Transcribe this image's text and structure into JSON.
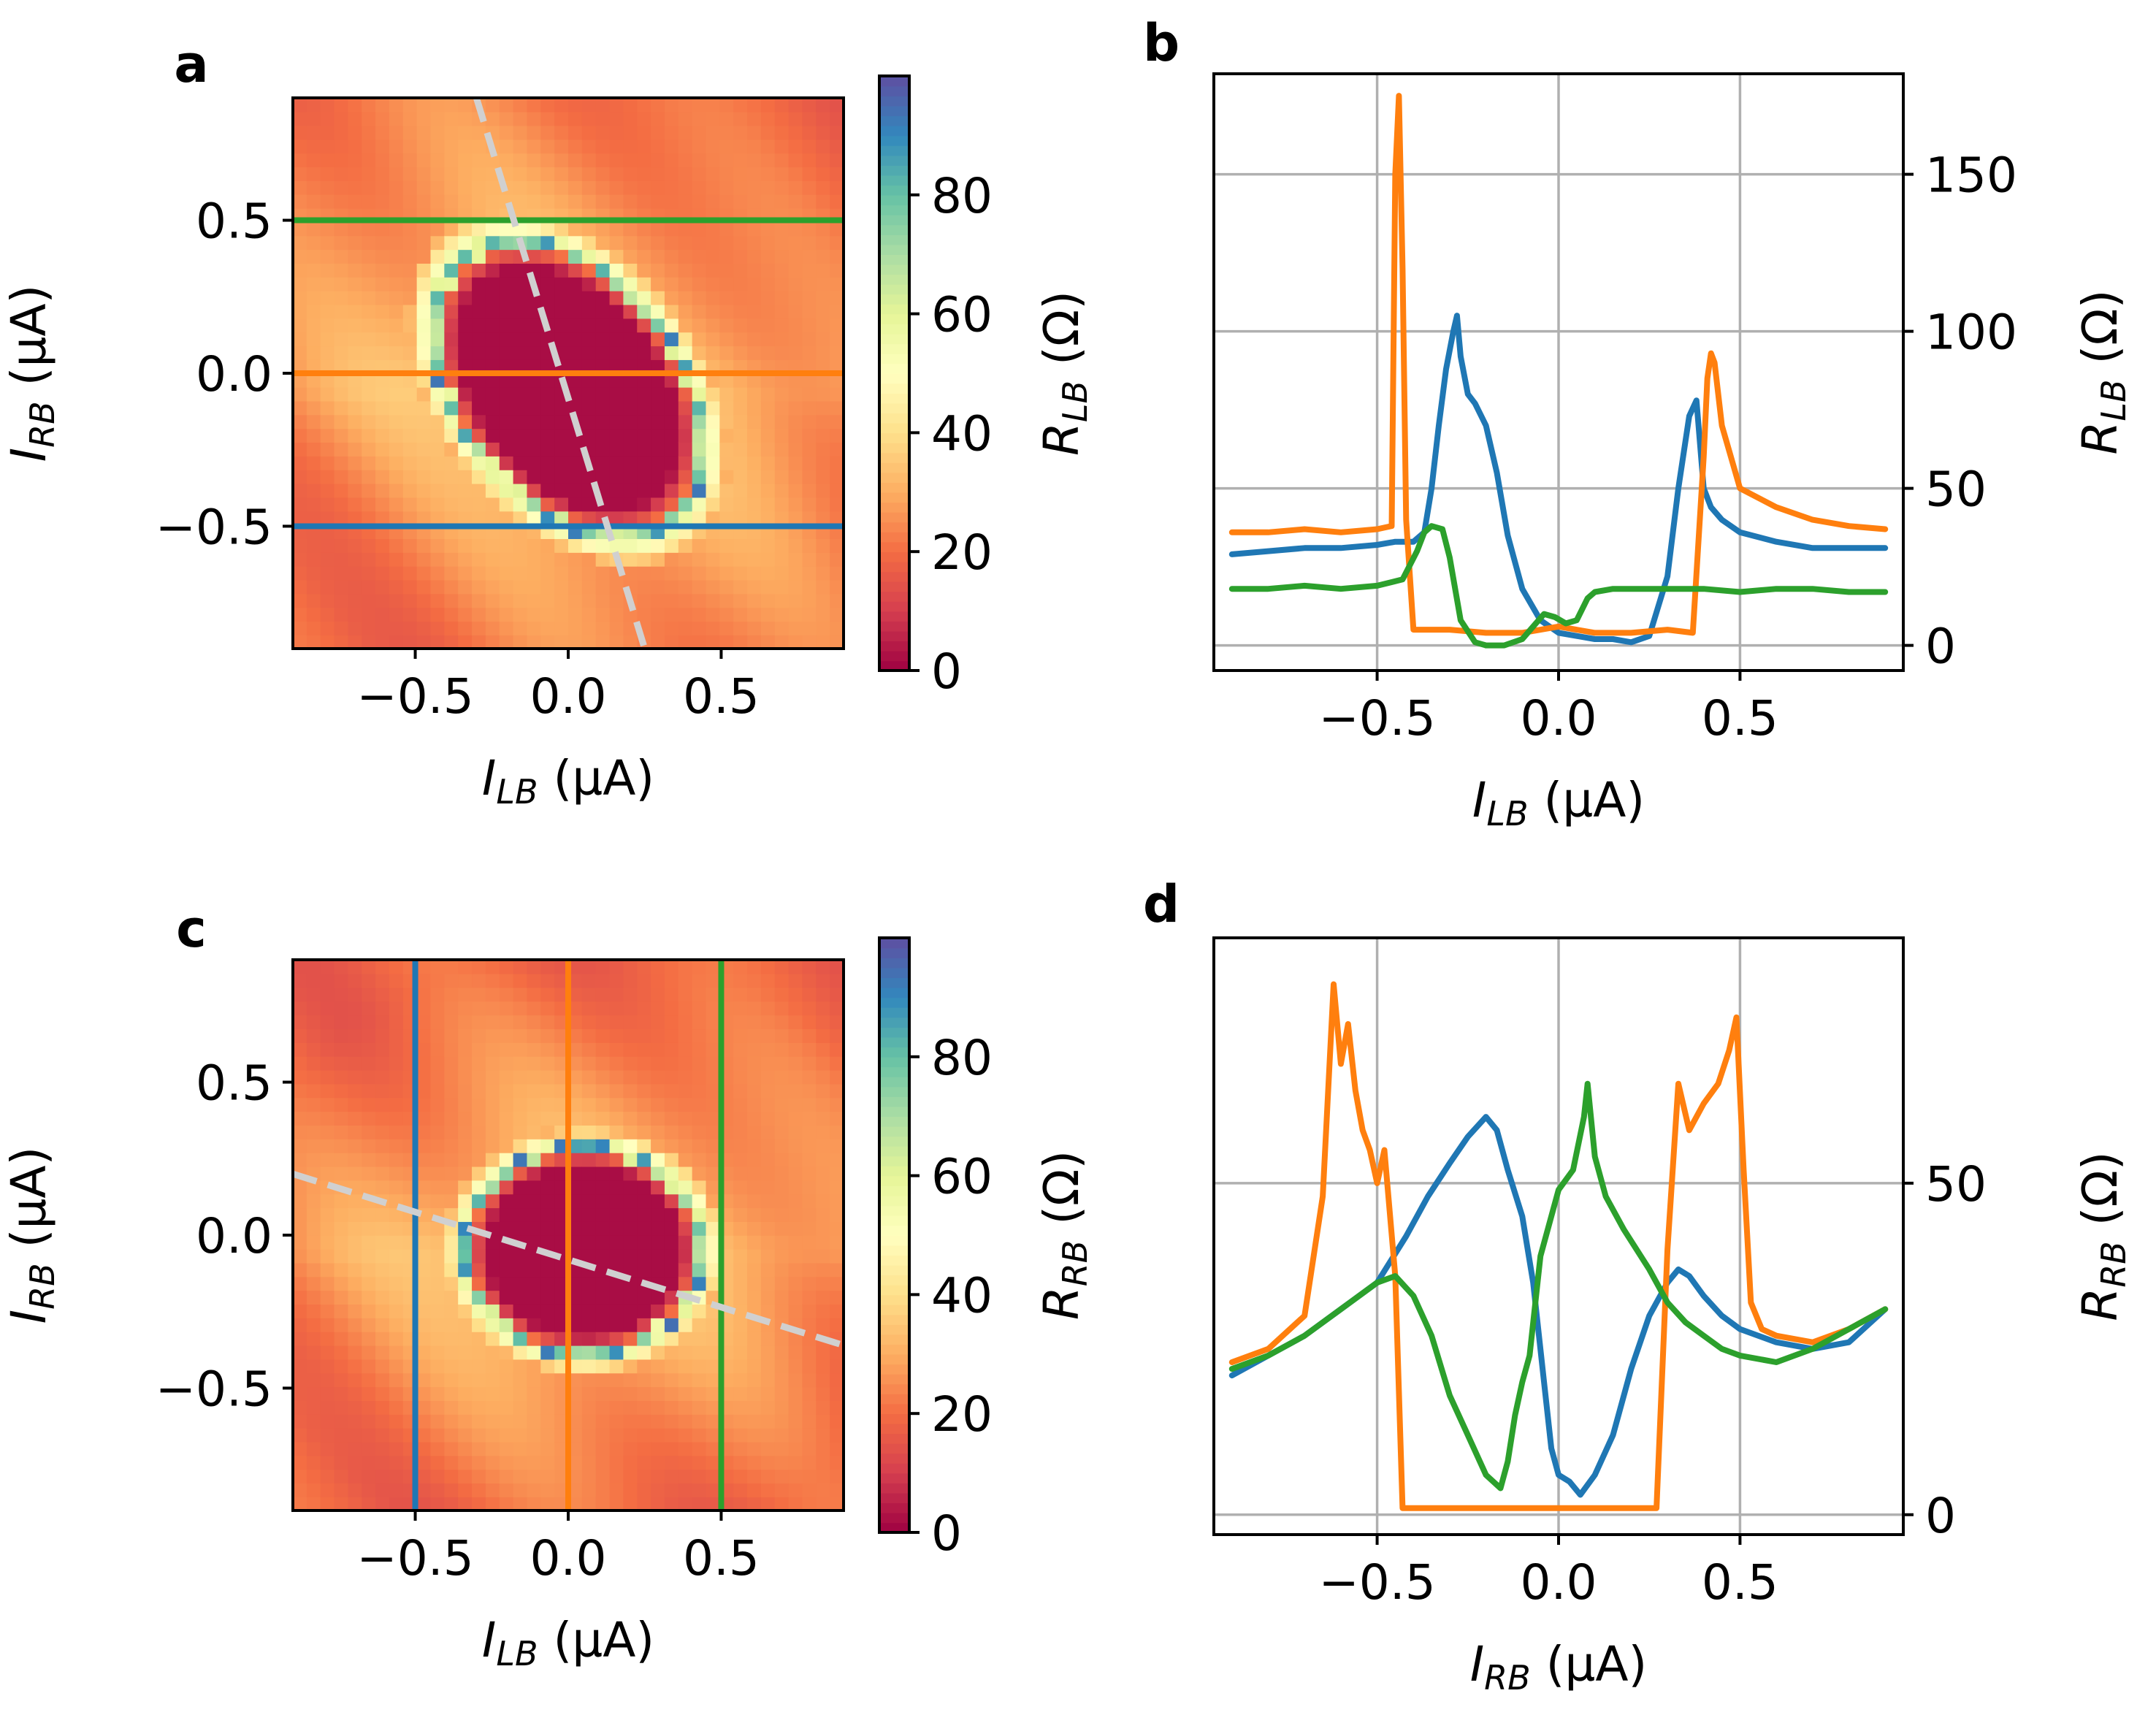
{
  "colors": {
    "blue": "#1f77b4",
    "orange": "#ff7f0e",
    "green": "#2ca02c",
    "dashed": "#d0d0d0",
    "grid": "#b0b0b0",
    "colormap": [
      "#9e0142",
      "#d53e4f",
      "#f46d43",
      "#fdae61",
      "#fee08b",
      "#ffffbf",
      "#e6f598",
      "#abdda4",
      "#66c2a5",
      "#3288bd",
      "#5e4fa2"
    ]
  },
  "chart_data": [
    {
      "id": "a",
      "panel_label": "a",
      "type": "heatmap",
      "x_label": {
        "main": "I",
        "sub": "LB",
        "unit": " (µA)"
      },
      "y_label": {
        "main": "I",
        "sub": "RB",
        "unit": " (µA)"
      },
      "colorbar_label": {
        "main": "R",
        "sub": "LB",
        "unit": " (Ω)"
      },
      "xlim": [
        -0.9,
        0.9
      ],
      "ylim": [
        -0.9,
        0.9
      ],
      "x_ticks": [
        -0.5,
        0.0,
        0.5
      ],
      "x_tick_labels": [
        "−0.5",
        "0.0",
        "0.5"
      ],
      "y_ticks": [
        -0.5,
        0.0,
        0.5
      ],
      "y_tick_labels": [
        "−0.5",
        "0.0",
        "0.5"
      ],
      "colorbar_range": [
        0,
        100
      ],
      "colorbar_ticks": [
        0,
        20,
        40,
        60,
        80
      ],
      "colorbar_tick_labels": [
        "0",
        "20",
        "40",
        "60",
        "80"
      ],
      "superconducting_region": {
        "center": [
          0.0,
          -0.05
        ],
        "half_width_x": 0.42,
        "half_height_y": 0.5,
        "shear": -0.35
      },
      "cut_lines": [
        {
          "orientation": "horizontal",
          "value": 0.5,
          "color": "green"
        },
        {
          "orientation": "horizontal",
          "value": 0.0,
          "color": "orange"
        },
        {
          "orientation": "horizontal",
          "value": -0.5,
          "color": "blue"
        }
      ],
      "dashed_line": {
        "from": [
          -0.3,
          0.9
        ],
        "to": [
          0.25,
          -0.9
        ]
      }
    },
    {
      "id": "b",
      "panel_label": "b",
      "type": "line",
      "x_label": {
        "main": "I",
        "sub": "LB",
        "unit": " (µA)"
      },
      "y_label": {
        "main": "R",
        "sub": "LB",
        "unit": " (Ω)"
      },
      "y_axis_side": "right",
      "grid": true,
      "xlim": [
        -0.95,
        0.95
      ],
      "ylim": [
        -8,
        182
      ],
      "x_ticks": [
        -0.5,
        0.0,
        0.5
      ],
      "x_tick_labels": [
        "−0.5",
        "0.0",
        "0.5"
      ],
      "y_ticks": [
        0,
        50,
        100,
        150
      ],
      "y_tick_labels": [
        "0",
        "50",
        "100",
        "150"
      ],
      "series": [
        {
          "name": "blue",
          "color": "blue",
          "x": [
            -0.9,
            -0.8,
            -0.7,
            -0.6,
            -0.5,
            -0.45,
            -0.4,
            -0.37,
            -0.35,
            -0.33,
            -0.31,
            -0.29,
            -0.28,
            -0.27,
            -0.25,
            -0.23,
            -0.2,
            -0.17,
            -0.14,
            -0.1,
            -0.05,
            0.0,
            0.05,
            0.1,
            0.15,
            0.2,
            0.25,
            0.3,
            0.33,
            0.36,
            0.38,
            0.4,
            0.42,
            0.45,
            0.5,
            0.6,
            0.7,
            0.8,
            0.9
          ],
          "values": [
            29,
            30,
            31,
            31,
            32,
            33,
            33,
            36,
            50,
            70,
            88,
            100,
            105,
            92,
            80,
            77,
            70,
            55,
            35,
            18,
            8,
            4,
            3,
            2,
            2,
            1,
            3,
            22,
            50,
            73,
            78,
            50,
            44,
            40,
            36,
            33,
            31,
            31,
            31
          ]
        },
        {
          "name": "orange",
          "color": "orange",
          "x": [
            -0.9,
            -0.8,
            -0.7,
            -0.6,
            -0.5,
            -0.46,
            -0.45,
            -0.44,
            -0.43,
            -0.42,
            -0.4,
            -0.3,
            -0.2,
            -0.1,
            0.0,
            0.1,
            0.2,
            0.3,
            0.37,
            0.4,
            0.41,
            0.42,
            0.43,
            0.45,
            0.5,
            0.6,
            0.7,
            0.8,
            0.9
          ],
          "values": [
            36,
            36,
            37,
            36,
            37,
            38,
            150,
            175,
            120,
            40,
            5,
            5,
            4,
            4,
            6,
            4,
            4,
            5,
            4,
            60,
            85,
            93,
            90,
            70,
            50,
            44,
            40,
            38,
            37
          ]
        },
        {
          "name": "green",
          "color": "green",
          "x": [
            -0.9,
            -0.8,
            -0.7,
            -0.6,
            -0.5,
            -0.43,
            -0.39,
            -0.37,
            -0.35,
            -0.32,
            -0.3,
            -0.27,
            -0.23,
            -0.2,
            -0.15,
            -0.1,
            -0.07,
            -0.04,
            -0.01,
            0.02,
            0.05,
            0.08,
            0.1,
            0.15,
            0.2,
            0.3,
            0.4,
            0.5,
            0.6,
            0.7,
            0.8,
            0.9
          ],
          "values": [
            18,
            18,
            19,
            18,
            19,
            21,
            30,
            36,
            38,
            37,
            28,
            8,
            1,
            0,
            0,
            2,
            6,
            10,
            9,
            7,
            8,
            15,
            17,
            18,
            18,
            18,
            18,
            17,
            18,
            18,
            17,
            17
          ]
        }
      ]
    },
    {
      "id": "c",
      "panel_label": "c",
      "type": "heatmap",
      "x_label": {
        "main": "I",
        "sub": "LB",
        "unit": " (µA)"
      },
      "y_label": {
        "main": "I",
        "sub": "RB",
        "unit": " (µA)"
      },
      "colorbar_label": {
        "main": "R",
        "sub": "RB",
        "unit": " (Ω)"
      },
      "xlim": [
        -0.9,
        0.9
      ],
      "ylim": [
        -0.9,
        0.9
      ],
      "x_ticks": [
        -0.5,
        0.0,
        0.5
      ],
      "x_tick_labels": [
        "−0.5",
        "0.0",
        "0.5"
      ],
      "y_ticks": [
        -0.5,
        0.0,
        0.5
      ],
      "y_tick_labels": [
        "−0.5",
        "0.0",
        "0.5"
      ],
      "colorbar_range": [
        0,
        100
      ],
      "colorbar_ticks": [
        0,
        20,
        40,
        60,
        80
      ],
      "colorbar_tick_labels": [
        "0",
        "20",
        "40",
        "60",
        "80"
      ],
      "superconducting_region": {
        "center": [
          0.05,
          -0.05
        ],
        "half_width_x": 0.4,
        "half_height_y": 0.35,
        "shear": 0.0
      },
      "cut_lines": [
        {
          "orientation": "vertical",
          "value": -0.5,
          "color": "blue"
        },
        {
          "orientation": "vertical",
          "value": 0.0,
          "color": "orange"
        },
        {
          "orientation": "vertical",
          "value": 0.5,
          "color": "green"
        }
      ],
      "dashed_line": {
        "from": [
          -0.9,
          0.2
        ],
        "to": [
          0.9,
          -0.36
        ]
      }
    },
    {
      "id": "d",
      "panel_label": "d",
      "type": "line",
      "x_label": {
        "main": "I",
        "sub": "RB",
        "unit": " (µA)"
      },
      "y_label": {
        "main": "R",
        "sub": "RB",
        "unit": " (Ω)"
      },
      "y_axis_side": "right",
      "grid": true,
      "xlim": [
        -0.95,
        0.95
      ],
      "ylim": [
        -3,
        87
      ],
      "x_ticks": [
        -0.5,
        0.0,
        0.5
      ],
      "x_tick_labels": [
        "−0.5",
        "0.0",
        "0.5"
      ],
      "y_ticks": [
        0,
        50
      ],
      "y_tick_labels": [
        "0",
        "50"
      ],
      "series": [
        {
          "name": "blue",
          "color": "blue",
          "x": [
            -0.9,
            -0.8,
            -0.7,
            -0.6,
            -0.5,
            -0.42,
            -0.36,
            -0.3,
            -0.25,
            -0.2,
            -0.17,
            -0.14,
            -0.1,
            -0.07,
            -0.04,
            -0.02,
            0.0,
            0.03,
            0.06,
            0.1,
            0.15,
            0.2,
            0.25,
            0.3,
            0.33,
            0.36,
            0.4,
            0.45,
            0.5,
            0.6,
            0.7,
            0.8,
            0.9
          ],
          "values": [
            21,
            24,
            27,
            31,
            35,
            42,
            48,
            53,
            57,
            60,
            58,
            52,
            45,
            35,
            20,
            10,
            6,
            5,
            3,
            6,
            12,
            22,
            30,
            35,
            37,
            36,
            33,
            30,
            28,
            26,
            25,
            26,
            31
          ]
        },
        {
          "name": "orange",
          "color": "orange",
          "x": [
            -0.9,
            -0.8,
            -0.7,
            -0.65,
            -0.62,
            -0.6,
            -0.58,
            -0.56,
            -0.54,
            -0.52,
            -0.5,
            -0.48,
            -0.45,
            -0.43,
            -0.4,
            -0.3,
            -0.2,
            -0.1,
            0.0,
            0.1,
            0.2,
            0.27,
            0.3,
            0.33,
            0.36,
            0.4,
            0.44,
            0.47,
            0.49,
            0.51,
            0.53,
            0.56,
            0.6,
            0.7,
            0.8,
            0.9
          ],
          "values": [
            23,
            25,
            30,
            48,
            80,
            68,
            74,
            64,
            58,
            55,
            50,
            55,
            36,
            1,
            1,
            1,
            1,
            1,
            1,
            1,
            1,
            1,
            40,
            65,
            58,
            62,
            65,
            70,
            75,
            52,
            32,
            28,
            27,
            26,
            28,
            31
          ]
        },
        {
          "name": "green",
          "color": "green",
          "x": [
            -0.9,
            -0.8,
            -0.7,
            -0.6,
            -0.5,
            -0.45,
            -0.4,
            -0.35,
            -0.3,
            -0.25,
            -0.2,
            -0.16,
            -0.14,
            -0.12,
            -0.1,
            -0.08,
            -0.05,
            0.0,
            0.04,
            0.07,
            0.08,
            0.1,
            0.13,
            0.18,
            0.25,
            0.3,
            0.35,
            0.4,
            0.45,
            0.5,
            0.6,
            0.7,
            0.8,
            0.9
          ],
          "values": [
            22,
            24,
            27,
            31,
            35,
            36,
            33,
            27,
            18,
            12,
            6,
            4,
            8,
            15,
            20,
            24,
            39,
            49,
            52,
            60,
            65,
            54,
            48,
            43,
            37,
            32,
            29,
            27,
            25,
            24,
            23,
            25,
            28,
            31
          ]
        }
      ]
    }
  ]
}
